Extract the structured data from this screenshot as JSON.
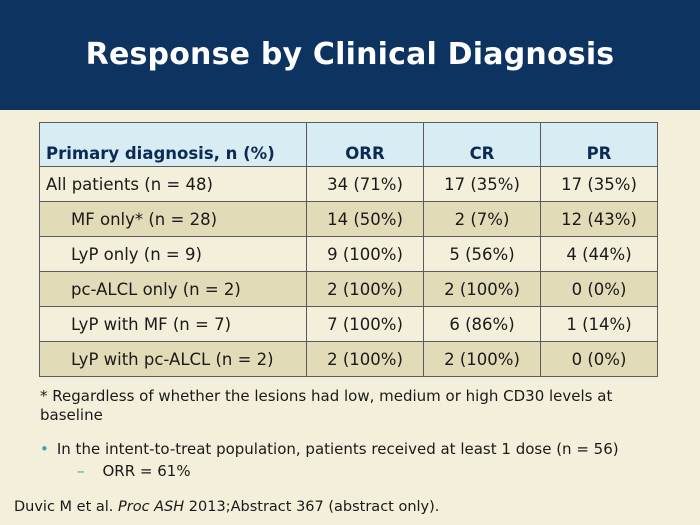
{
  "slide": {
    "title": "Response by Clinical Diagnosis"
  },
  "table": {
    "headers": [
      "Primary diagnosis, n (%)",
      "ORR",
      "CR",
      "PR"
    ],
    "rows": [
      {
        "label": "All patients (n = 48)",
        "orr": "34 (71%)",
        "cr": "17 (35%)",
        "pr": "17 (35%)"
      },
      {
        "label": "MF only* (n = 28)",
        "orr": "14 (50%)",
        "cr": "2 (7%)",
        "pr": "12 (43%)"
      },
      {
        "label": "LyP only (n = 9)",
        "orr": "9 (100%)",
        "cr": "5 (56%)",
        "pr": "4 (44%)"
      },
      {
        "label": "pc-ALCL only (n = 2)",
        "orr": "2 (100%)",
        "cr": "2 (100%)",
        "pr": "0 (0%)"
      },
      {
        "label": "LyP with MF (n = 7)",
        "orr": "7 (100%)",
        "cr": "6 (86%)",
        "pr": "1 (14%)"
      },
      {
        "label": "LyP with pc-ALCL (n = 2)",
        "orr": "2 (100%)",
        "cr": "2 (100%)",
        "pr": "0 (0%)"
      }
    ]
  },
  "notes": {
    "footnote": "* Regardless of whether the lesions had low, medium or high CD30 levels at baseline",
    "bullet": "In the intent-to-treat population, patients received at least 1 dose (n = 56)",
    "sub_bullet": "ORR = 61%",
    "reference_prefix": "Duvic M et al. ",
    "reference_journal": "Proc ASH",
    "reference_suffix": " 2013;Abstract 367 (abstract only)."
  },
  "colors": {
    "header_bg": "#0d3461",
    "slide_bg": "#f3efdb",
    "table_header_bg": "#d7ecf3",
    "row_alt_bg": "#e2dbb8",
    "bullet_accent": "#3aa3b0"
  }
}
